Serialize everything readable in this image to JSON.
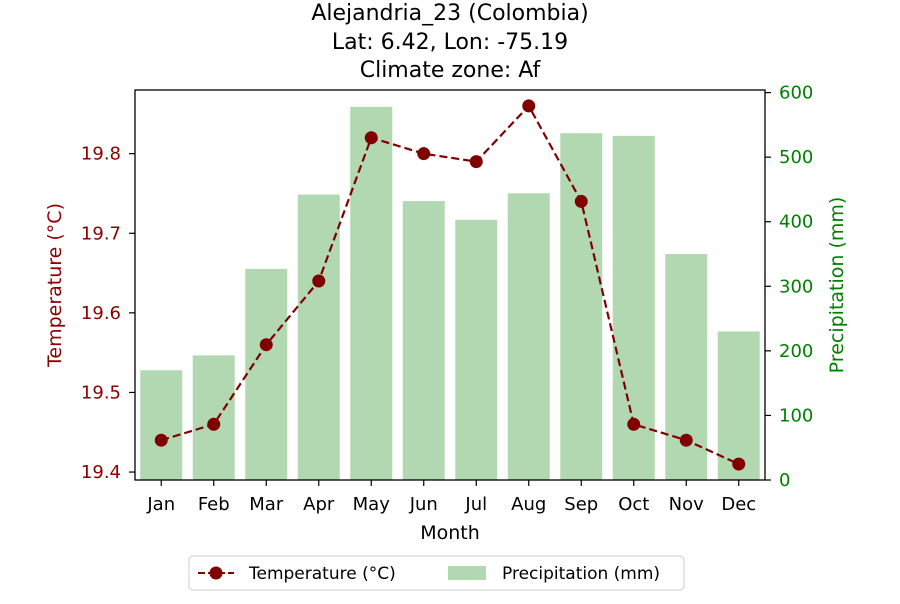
{
  "chart_data": {
    "type": "bar+line",
    "title_lines": [
      "Alejandria_23 (Colombia)",
      "Lat: 6.42, Lon: -75.19",
      "Climate zone: Af"
    ],
    "xlabel": "Month",
    "ylabel_left": "Temperature (°C)",
    "ylabel_right": "Precipitation (mm)",
    "categories": [
      "Jan",
      "Feb",
      "Mar",
      "Apr",
      "May",
      "Jun",
      "Jul",
      "Aug",
      "Sep",
      "Oct",
      "Nov",
      "Dec"
    ],
    "temperature": {
      "name": "Temperature (°C)",
      "values": [
        19.44,
        19.46,
        19.56,
        19.64,
        19.82,
        19.8,
        19.79,
        19.86,
        19.74,
        19.46,
        19.44,
        19.41
      ],
      "color": "#800000",
      "style": "dashed line with circle markers"
    },
    "precipitation": {
      "name": "Precipitation (mm)",
      "values": [
        170,
        193,
        327,
        442,
        578,
        432,
        403,
        444,
        537,
        533,
        350,
        230
      ],
      "color": "#b2d8b2"
    },
    "ylim_left": [
      19.39,
      19.88
    ],
    "ylim_right": [
      0,
      604
    ],
    "yticks_left": [
      "19.4",
      "19.5",
      "19.6",
      "19.7",
      "19.8"
    ],
    "yticks_right": [
      "0",
      "100",
      "200",
      "300",
      "400",
      "500",
      "600"
    ],
    "left_axis_color": "#8b0000",
    "right_axis_color": "#008000",
    "legend_position": "bottom-center",
    "legend": [
      "Temperature (°C)",
      "Precipitation (mm)"
    ]
  }
}
